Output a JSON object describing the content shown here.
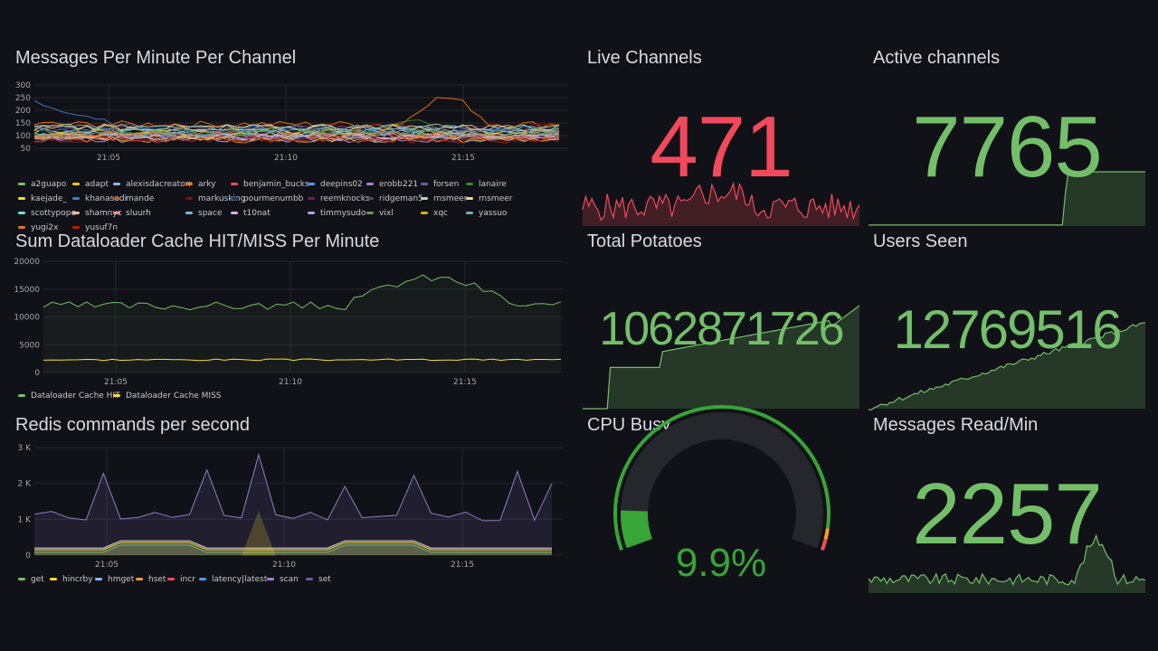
{
  "panels": {
    "messages_per_minute": {
      "title": "Messages Per Minute Per Channel",
      "y_ticks": [
        "300",
        "250",
        "200",
        "150",
        "100",
        "50"
      ],
      "x_ticks": [
        "21:05",
        "21:10",
        "21:15"
      ],
      "legend": [
        {
          "name": "a2guapo",
          "color": "#73bf69"
        },
        {
          "name": "adapt",
          "color": "#f2cc0c"
        },
        {
          "name": "alexisdacreatorr",
          "color": "#8ab8ff"
        },
        {
          "name": "arky",
          "color": "#ff780a"
        },
        {
          "name": "benjamin_bucks",
          "color": "#f2495c"
        },
        {
          "name": "deepins02",
          "color": "#5794f2"
        },
        {
          "name": "erobb221",
          "color": "#b877d9"
        },
        {
          "name": "forsen",
          "color": "#705da0"
        },
        {
          "name": "lanaire",
          "color": "#37872d"
        },
        {
          "name": "kaejade_",
          "color": "#fade2a"
        },
        {
          "name": "khanasadi",
          "color": "#447ebc"
        },
        {
          "name": "mande",
          "color": "#c15c17"
        },
        {
          "name": "markusking",
          "color": "#890f02"
        },
        {
          "name": "pourmenumbb",
          "color": "#0a437c"
        },
        {
          "name": "reemknocks",
          "color": "#6d1f62"
        },
        {
          "name": "ridgeman5",
          "color": "#584477"
        },
        {
          "name": "rnsmeer",
          "color": "#b7dbab"
        },
        {
          "name": "rnsmeer",
          "color": "#f4d598"
        },
        {
          "name": "scottypope",
          "color": "#70dbed"
        },
        {
          "name": "shamnyc",
          "color": "#f9ba8f"
        },
        {
          "name": "sluurh",
          "color": "#f29191"
        },
        {
          "name": "space",
          "color": "#82b5d8"
        },
        {
          "name": "t10nat",
          "color": "#e5a8e2"
        },
        {
          "name": "timmysudo",
          "color": "#aea2e0"
        },
        {
          "name": "vixl",
          "color": "#629e51"
        },
        {
          "name": "xqc",
          "color": "#e5ac0e"
        },
        {
          "name": "yassuo",
          "color": "#64b0c8"
        },
        {
          "name": "yugi2x",
          "color": "#e0752d"
        },
        {
          "name": "yusuf7n",
          "color": "#bf1b00"
        }
      ]
    },
    "dataloader": {
      "title": "Sum Dataloader Cache HIT/MISS Per Minute",
      "y_ticks": [
        "20000",
        "15000",
        "10000",
        "5000",
        "0"
      ],
      "x_ticks": [
        "21:05",
        "21:10",
        "21:15"
      ],
      "legend": [
        {
          "name": "Dataloader Cache HIT",
          "color": "#73bf69"
        },
        {
          "name": "Dataloader Cache MISS",
          "color": "#fade2a"
        }
      ]
    },
    "redis": {
      "title": "Redis commands per second",
      "y_ticks": [
        "3 K",
        "2 K",
        "1 K",
        "0"
      ],
      "x_ticks": [
        "21:05",
        "21:10",
        "21:15"
      ],
      "legend": [
        {
          "name": "get",
          "color": "#73bf69"
        },
        {
          "name": "hincrby",
          "color": "#fade2a"
        },
        {
          "name": "hmget",
          "color": "#8ab8ff"
        },
        {
          "name": "hset",
          "color": "#ff9830"
        },
        {
          "name": "incr",
          "color": "#f2495c"
        },
        {
          "name": "latency|latest",
          "color": "#5794f2"
        },
        {
          "name": "scan",
          "color": "#b877d9"
        },
        {
          "name": "set",
          "color": "#705da0"
        }
      ]
    },
    "live_channels": {
      "title": "Live Channels",
      "value": "471",
      "color": "#f2495c"
    },
    "active_channels": {
      "title": "Active channels",
      "value": "7765",
      "color": "#73bf69"
    },
    "total_potatoes": {
      "title": "Total Potatoes",
      "value": "1062871726",
      "color": "#73bf69"
    },
    "users_seen": {
      "title": "Users Seen",
      "value": "12769516",
      "color": "#73bf69"
    },
    "cpu_busy": {
      "title": "CPU Busy",
      "value": "9.9%",
      "percent": 9.9,
      "color": "#37a537"
    },
    "messages_read": {
      "title": "Messages Read/Min",
      "value": "2257",
      "color": "#73bf69"
    }
  }
}
